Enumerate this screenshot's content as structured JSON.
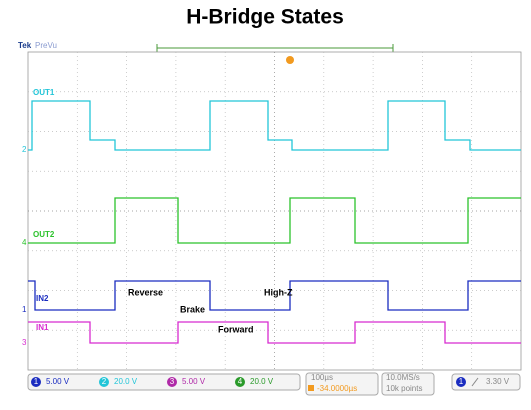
{
  "title": "H-Bridge States",
  "header": {
    "brand": "Tek",
    "mode": "PreVu"
  },
  "traces": [
    {
      "label": "OUT1",
      "channel": "2"
    },
    {
      "label": "OUT2",
      "channel": "4"
    },
    {
      "label": "IN2",
      "channel": "1"
    },
    {
      "label": "IN1",
      "channel": "3"
    }
  ],
  "annotations": [
    "Reverse",
    "Brake",
    "High-Z",
    "Forward"
  ],
  "status_bar": {
    "channels": [
      {
        "number": "1",
        "scale": "5.00 V"
      },
      {
        "number": "2",
        "scale": "20.0 V"
      },
      {
        "number": "3",
        "scale": "5.00 V"
      },
      {
        "number": "4",
        "scale": "20.0 V"
      }
    ],
    "timebase": "100µs",
    "delay": "-34.0000µs",
    "sample_rate": "10.0MS/s",
    "record_length": "10k points",
    "trigger_source": "1",
    "trigger_level": "3.30 V"
  }
}
